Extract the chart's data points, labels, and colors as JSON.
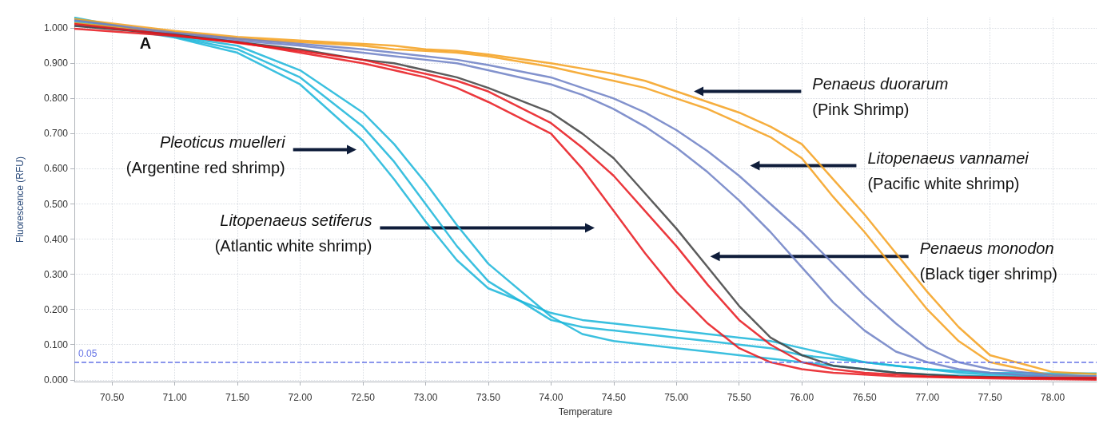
{
  "chart_data": {
    "type": "line",
    "xlabel": "Temperature",
    "ylabel": "Fluorescence (RFU)",
    "x": [
      70.2,
      71,
      71.5,
      72,
      72.5,
      72.75,
      73,
      73.25,
      73.5,
      74,
      74.25,
      74.5,
      74.75,
      75,
      75.25,
      75.5,
      75.75,
      76,
      76.25,
      76.5,
      76.75,
      77,
      77.25,
      77.5,
      78,
      78.35
    ],
    "series": [
      {
        "color": "#19b5d9",
        "values": [
          1.03,
          0.975,
          0.94,
          0.86,
          0.72,
          0.62,
          0.5,
          0.38,
          0.28,
          0.17,
          0.15,
          0.14,
          0.13,
          0.12,
          0.11,
          0.1,
          0.09,
          0.07,
          0.06,
          0.05,
          0.04,
          0.03,
          0.02,
          0.015,
          0.012,
          0.011
        ]
      },
      {
        "color": "#19b5d9",
        "values": [
          1.024,
          0.977,
          0.95,
          0.88,
          0.76,
          0.67,
          0.56,
          0.44,
          0.33,
          0.18,
          0.13,
          0.11,
          0.1,
          0.09,
          0.08,
          0.07,
          0.06,
          0.05,
          0.04,
          0.03,
          0.02,
          0.015,
          0.012,
          0.01,
          0.007,
          0.005
        ]
      },
      {
        "color": "#19b5d9",
        "values": [
          1.018,
          0.973,
          0.93,
          0.84,
          0.68,
          0.57,
          0.45,
          0.34,
          0.26,
          0.19,
          0.17,
          0.16,
          0.15,
          0.14,
          0.13,
          0.12,
          0.11,
          0.09,
          0.07,
          0.05,
          0.04,
          0.03,
          0.025,
          0.02,
          0.018,
          0.018
        ]
      },
      {
        "color": "#f5a01c",
        "values": [
          1.014,
          0.988,
          0.97,
          0.96,
          0.95,
          0.94,
          0.935,
          0.93,
          0.92,
          0.89,
          0.87,
          0.85,
          0.83,
          0.8,
          0.77,
          0.73,
          0.69,
          0.63,
          0.52,
          0.42,
          0.31,
          0.2,
          0.11,
          0.05,
          0.012,
          0.008
        ]
      },
      {
        "color": "#f5a01c",
        "values": [
          1.026,
          0.992,
          0.975,
          0.965,
          0.955,
          0.95,
          0.94,
          0.935,
          0.925,
          0.9,
          0.885,
          0.87,
          0.85,
          0.82,
          0.79,
          0.76,
          0.72,
          0.67,
          0.57,
          0.47,
          0.36,
          0.25,
          0.15,
          0.07,
          0.022,
          0.016
        ]
      },
      {
        "color": "#6c7fc4",
        "values": [
          1.008,
          0.984,
          0.965,
          0.95,
          0.93,
          0.92,
          0.91,
          0.9,
          0.88,
          0.84,
          0.81,
          0.77,
          0.72,
          0.66,
          0.59,
          0.51,
          0.42,
          0.32,
          0.22,
          0.14,
          0.08,
          0.05,
          0.03,
          0.02,
          0.008,
          0.004
        ]
      },
      {
        "color": "#6c7fc4",
        "values": [
          1.022,
          0.987,
          0.97,
          0.955,
          0.94,
          0.93,
          0.92,
          0.91,
          0.895,
          0.86,
          0.83,
          0.8,
          0.76,
          0.71,
          0.65,
          0.58,
          0.5,
          0.42,
          0.33,
          0.24,
          0.16,
          0.09,
          0.05,
          0.03,
          0.014,
          0.01
        ]
      },
      {
        "color": "#404040",
        "values": [
          1.006,
          0.982,
          0.96,
          0.94,
          0.91,
          0.9,
          0.88,
          0.86,
          0.83,
          0.76,
          0.7,
          0.63,
          0.53,
          0.43,
          0.32,
          0.21,
          0.12,
          0.07,
          0.04,
          0.03,
          0.02,
          0.015,
          0.01,
          0.008,
          0.004,
          0.003
        ]
      },
      {
        "color": "#e8151b",
        "values": [
          0.998,
          0.978,
          0.96,
          0.93,
          0.9,
          0.88,
          0.86,
          0.83,
          0.79,
          0.7,
          0.6,
          0.48,
          0.36,
          0.25,
          0.16,
          0.09,
          0.05,
          0.03,
          0.02,
          0.015,
          0.01,
          0.008,
          0.006,
          0.004,
          0.002,
          0.0
        ]
      },
      {
        "color": "#e8151b",
        "values": [
          1.012,
          0.98,
          0.958,
          0.935,
          0.91,
          0.89,
          0.87,
          0.85,
          0.82,
          0.73,
          0.66,
          0.58,
          0.48,
          0.38,
          0.27,
          0.17,
          0.1,
          0.05,
          0.03,
          0.02,
          0.015,
          0.01,
          0.008,
          0.007,
          0.006,
          0.006
        ]
      }
    ],
    "xlim": [
      70.2,
      78.35
    ],
    "xticks": [
      {
        "value": 70.5,
        "label": "70.50"
      },
      {
        "value": 71,
        "label": "71.00"
      },
      {
        "value": 71.5,
        "label": "71.50"
      },
      {
        "value": 72,
        "label": "72.00"
      },
      {
        "value": 72.5,
        "label": "72.50"
      },
      {
        "value": 73,
        "label": "73.00"
      },
      {
        "value": 73.5,
        "label": "73.50"
      },
      {
        "value": 74,
        "label": "74.00"
      },
      {
        "value": 74.5,
        "label": "74.50"
      },
      {
        "value": 75,
        "label": "75.00"
      },
      {
        "value": 75.5,
        "label": "75.50"
      },
      {
        "value": 76,
        "label": "76.00"
      },
      {
        "value": 76.5,
        "label": "76.50"
      },
      {
        "value": 77,
        "label": "77.00"
      },
      {
        "value": 77.5,
        "label": "77.50"
      },
      {
        "value": 78,
        "label": "78.00"
      }
    ],
    "ylim": [
      -0.005,
      1.03
    ],
    "yticks": [
      {
        "value": 0,
        "label": "0.000"
      },
      {
        "value": 0.1,
        "label": "0.100"
      },
      {
        "value": 0.2,
        "label": "0.200"
      },
      {
        "value": 0.3,
        "label": "0.300"
      },
      {
        "value": 0.4,
        "label": "0.400"
      },
      {
        "value": 0.5,
        "label": "0.500"
      },
      {
        "value": 0.6,
        "label": "0.600"
      },
      {
        "value": 0.7,
        "label": "0.700"
      },
      {
        "value": 0.8,
        "label": "0.800"
      },
      {
        "value": 0.9,
        "label": "0.900"
      },
      {
        "value": 1,
        "label": "1.000"
      }
    ],
    "grid": true,
    "ref_lines": [
      {
        "axis": "y",
        "value": 0.05,
        "label": "0.05",
        "color": "#6674e6",
        "line_style": "dashed"
      }
    ],
    "annotations": [
      "A",
      "Pleoticus muelleri\n(Argentine red shrimp)",
      "Litopenaeus setiferus\n(Atlantic white shrimp)",
      "Penaeus duorarum\n(Pink Shrimp)",
      "Litopenaeus vannamei\n(Pacific white shrimp)",
      "Penaeus monodon\n(Black tiger shrimp)"
    ]
  }
}
